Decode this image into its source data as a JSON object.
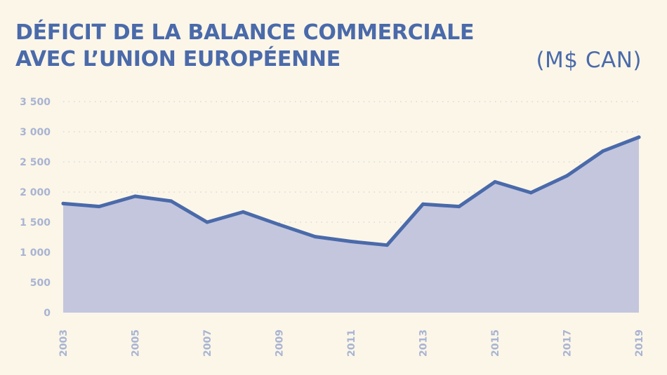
{
  "header": {
    "title_line1": "DÉFICIT DE LA BALANCE COMMERCIALE",
    "title_line2": "AVEC L’UNION EUROPÉENNE",
    "unit": "(M$ CAN)"
  },
  "colors": {
    "background": "#fbf6e8",
    "line": "#4a6aaa",
    "area": "#c4c6de",
    "tick_text": "#a9b4d3"
  },
  "chart_data": {
    "type": "area",
    "title": "DÉFICIT DE LA BALANCE COMMERCIALE AVEC L’UNION EUROPÉENNE",
    "ylabel": "(M$ CAN)",
    "xlabel": "",
    "x": [
      2003,
      2004,
      2005,
      2006,
      2007,
      2008,
      2009,
      2010,
      2011,
      2012,
      2013,
      2014,
      2015,
      2016,
      2017,
      2018,
      2019
    ],
    "values": [
      1810,
      1760,
      1930,
      1850,
      1500,
      1670,
      1460,
      1260,
      1180,
      1120,
      1800,
      1760,
      2170,
      1990,
      2270,
      2680,
      2910
    ],
    "ylim": [
      0,
      3500
    ],
    "yticks": [
      0,
      500,
      1000,
      1500,
      2000,
      2500,
      3000,
      3500
    ],
    "ytick_labels": [
      "0",
      "500",
      "1 000",
      "1 500",
      "2 000",
      "2 500",
      "3 000",
      "3 500"
    ],
    "xtick_labels": [
      "2003",
      "2005",
      "2007",
      "2009",
      "2011",
      "2013",
      "2015",
      "2017",
      "2019"
    ],
    "grid": true,
    "grid_style": "dotted horizontal"
  }
}
